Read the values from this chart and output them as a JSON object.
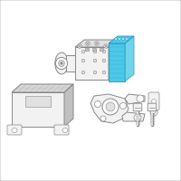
{
  "bg_color": "#ffffff",
  "border_color": "#c8c8c8",
  "line_color": "#888888",
  "blue_fill": "#4ec8e8",
  "blue_stroke": "#2aa0c8",
  "light_gray": "#d8d8d8",
  "mid_gray": "#c0c0c0",
  "dark_gray": "#a8a8a8",
  "body_fill": "#f2f2f2",
  "shadow_fill": "#e0e0e0",
  "figsize": [
    2.0,
    2.0
  ],
  "dpi": 100
}
